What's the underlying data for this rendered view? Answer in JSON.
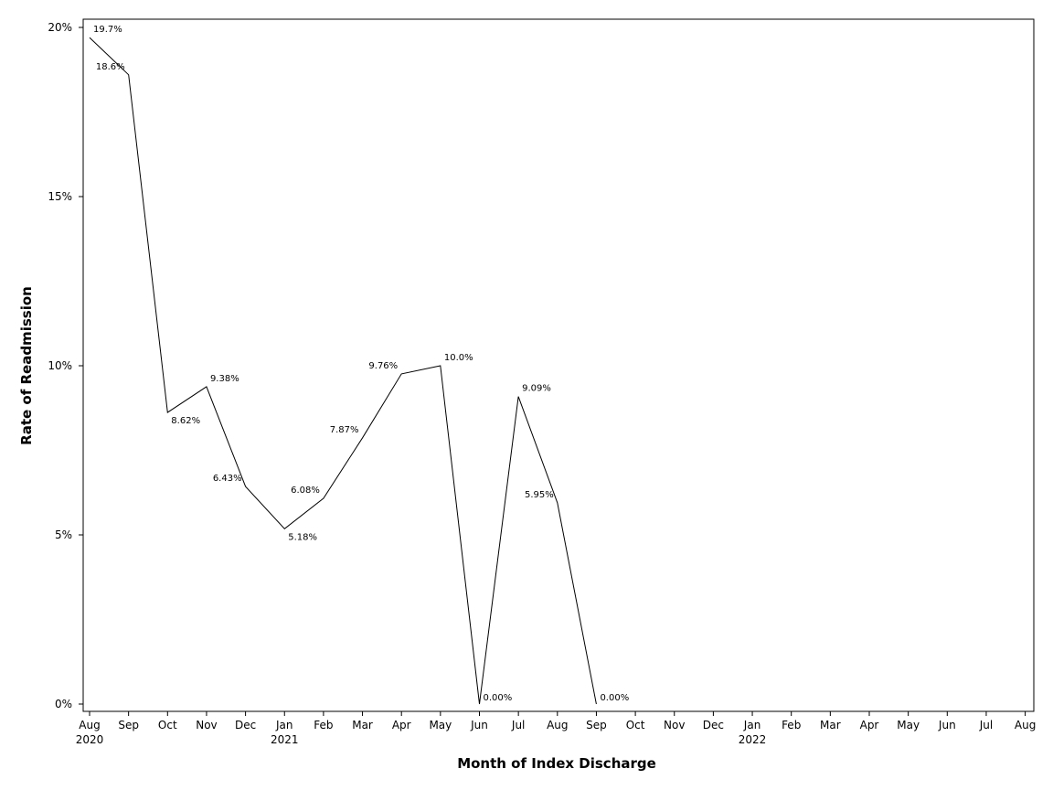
{
  "chart_data": {
    "type": "line",
    "xlabel": "Month of Index Discharge",
    "ylabel": "Rate of Readmission",
    "ylim": [
      0,
      20
    ],
    "y_ticks": [
      {
        "value": 0,
        "label": "0%"
      },
      {
        "value": 5,
        "label": "5%"
      },
      {
        "value": 10,
        "label": "10%"
      },
      {
        "value": 15,
        "label": "15%"
      },
      {
        "value": 20,
        "label": "20%"
      }
    ],
    "x_ticks": [
      {
        "month": "Aug",
        "year": "2020"
      },
      {
        "month": "Sep",
        "year": ""
      },
      {
        "month": "Oct",
        "year": ""
      },
      {
        "month": "Nov",
        "year": ""
      },
      {
        "month": "Dec",
        "year": ""
      },
      {
        "month": "Jan",
        "year": "2021"
      },
      {
        "month": "Feb",
        "year": ""
      },
      {
        "month": "Mar",
        "year": ""
      },
      {
        "month": "Apr",
        "year": ""
      },
      {
        "month": "May",
        "year": ""
      },
      {
        "month": "Jun",
        "year": ""
      },
      {
        "month": "Jul",
        "year": ""
      },
      {
        "month": "Aug",
        "year": ""
      },
      {
        "month": "Sep",
        "year": ""
      },
      {
        "month": "Oct",
        "year": ""
      },
      {
        "month": "Nov",
        "year": ""
      },
      {
        "month": "Dec",
        "year": ""
      },
      {
        "month": "Jan",
        "year": "2022"
      },
      {
        "month": "Feb",
        "year": ""
      },
      {
        "month": "Mar",
        "year": ""
      },
      {
        "month": "Apr",
        "year": ""
      },
      {
        "month": "May",
        "year": ""
      },
      {
        "month": "Jun",
        "year": ""
      },
      {
        "month": "Jul",
        "year": ""
      },
      {
        "month": "Aug",
        "year": ""
      }
    ],
    "series": [
      {
        "points": [
          {
            "x": "2020-08",
            "y": 19.7,
            "label": "19.7%"
          },
          {
            "x": "2020-09",
            "y": 18.6,
            "label": "18.6%"
          },
          {
            "x": "2020-10",
            "y": 8.62,
            "label": "8.62%"
          },
          {
            "x": "2020-11",
            "y": 9.38,
            "label": "9.38%"
          },
          {
            "x": "2020-12",
            "y": 6.43,
            "label": "6.43%"
          },
          {
            "x": "2021-01",
            "y": 5.18,
            "label": "5.18%"
          },
          {
            "x": "2021-02",
            "y": 6.08,
            "label": "6.08%"
          },
          {
            "x": "2021-03",
            "y": 7.87,
            "label": "7.87%"
          },
          {
            "x": "2021-04",
            "y": 9.76,
            "label": "9.76%"
          },
          {
            "x": "2021-05",
            "y": 10.0,
            "label": "10.0%"
          },
          {
            "x": "2021-06",
            "y": 0.0,
            "label": "0.00%"
          },
          {
            "x": "2021-07",
            "y": 9.09,
            "label": "9.09%"
          },
          {
            "x": "2021-08",
            "y": 5.95,
            "label": "5.95%"
          },
          {
            "x": "2021-09",
            "y": 0.0,
            "label": "0.00%"
          }
        ]
      }
    ],
    "grid": false,
    "legend": "none"
  }
}
